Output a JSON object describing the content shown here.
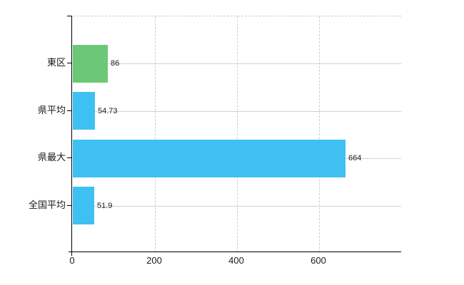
{
  "chart_data": {
    "type": "bar",
    "orientation": "horizontal",
    "title": "",
    "categories": [
      "東区",
      "県平均",
      "県最大",
      "全国平均"
    ],
    "values": [
      86,
      54.73,
      664,
      51.9
    ],
    "value_labels": [
      "86",
      "54.73",
      "664",
      "51.9"
    ],
    "bar_colors": [
      "#6cc876",
      "#3fc0f2",
      "#3fc0f2",
      "#3fc0f2"
    ],
    "x_tick_labels": [
      "0",
      "200",
      "400",
      "600"
    ],
    "x_tick_values": [
      0,
      200,
      400,
      600
    ],
    "xlim": [
      0,
      800
    ],
    "grid": "on",
    "legend": "none",
    "colors": {
      "bar_blue": "#3fc0f2",
      "bar_green": "#6cc876",
      "hgrid": "#ccd6cc",
      "vgrid_dashed": "#c9cfc9",
      "axis": "#000000",
      "text": "#1a1a1a",
      "background": "#ffffff"
    }
  }
}
